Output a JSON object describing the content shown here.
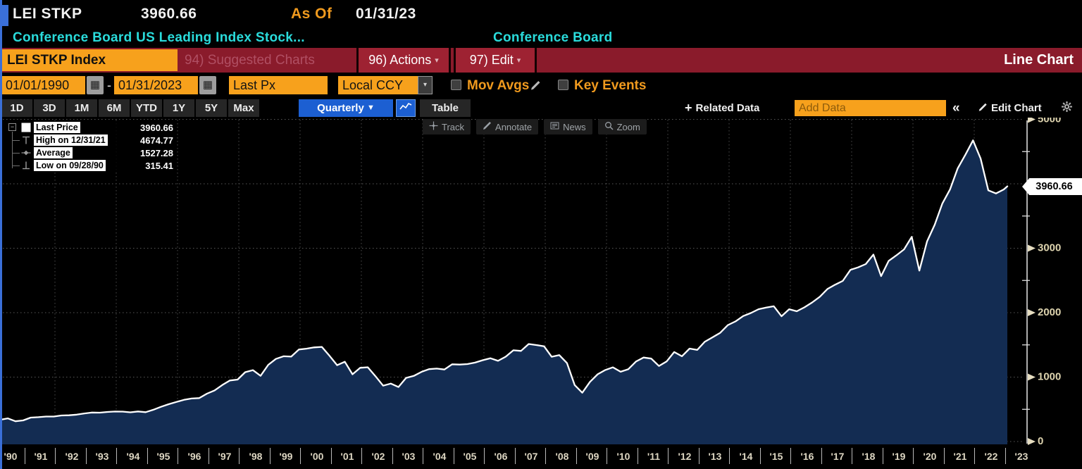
{
  "header": {
    "ticker": "LEI STKP",
    "last_value": "3960.66",
    "as_of_label": "As Of",
    "as_of_date": "01/31/23",
    "description": "Conference Board US Leading Index Stock...",
    "source": "Conference Board"
  },
  "ribbon": {
    "ticker_box": "LEI STKP Index",
    "suggested_charts": "94) Suggested Charts",
    "actions": "96) Actions",
    "edit": "97) Edit",
    "view_title": "Line Chart"
  },
  "controls": {
    "date_from": "01/01/1990",
    "date_range_dash": "-",
    "date_to": "01/31/2023",
    "price_field": "Last Px",
    "currency": "Local CCY",
    "mov_avgs_label": "Mov Avgs",
    "key_events_label": "Key Events"
  },
  "toolbar": {
    "periods": [
      "1D",
      "3D",
      "1M",
      "6M",
      "YTD",
      "1Y",
      "5Y",
      "Max"
    ],
    "frequency": "Quarterly",
    "table_label": "Table",
    "related_data_label": "Related Data",
    "related_plus": "+",
    "add_data_placeholder": "Add Data",
    "collapse_label": "«",
    "edit_chart_label": "Edit Chart"
  },
  "chart_tools": [
    {
      "icon": "track-icon",
      "label": "Track"
    },
    {
      "icon": "annotate-icon",
      "label": "Annotate"
    },
    {
      "icon": "news-icon",
      "label": "News"
    },
    {
      "icon": "zoom-icon",
      "label": "Zoom"
    }
  ],
  "legend": {
    "rows": [
      {
        "icon": "last-price-swatch",
        "label": "Last Price",
        "value": "3960.66"
      },
      {
        "icon": "high-marker-icon",
        "label": "High on 12/31/21",
        "value": "4674.77"
      },
      {
        "icon": "average-marker-icon",
        "label": "Average",
        "value": "1527.28"
      },
      {
        "icon": "low-marker-icon",
        "label": "Low on 09/28/90",
        "value": "315.41"
      }
    ]
  },
  "last_price_tag": "3960.66",
  "colors": {
    "accent_orange": "#f7a11c",
    "amber_text": "#f09a1e",
    "cyan_text": "#2adbdb",
    "ribbon_red": "#8a1b2b",
    "button_blue": "#1c5fd2",
    "line_white": "#ffffff",
    "fill_navy": "#132c52",
    "grid_gray": "#555555",
    "axis_label": "#ddd3ae"
  },
  "chart_data": {
    "type": "area",
    "title": "LEI STKP Index - Conference Board US Leading Index Stock Prices",
    "frequency": "Quarterly",
    "x_unit": "decimal_year",
    "x_start": 1990.21,
    "x_step": 0.25,
    "x_last": 2023.08,
    "values": [
      338,
      360,
      315,
      328,
      372,
      378,
      388,
      388,
      404,
      408,
      418,
      436,
      450,
      448,
      459,
      466,
      464,
      454,
      467,
      456,
      493,
      539,
      579,
      614,
      647,
      668,
      674,
      743,
      793,
      876,
      947,
      962,
      1076,
      1108,
      1020,
      1190,
      1282,
      1323,
      1318,
      1428,
      1442,
      1461,
      1469,
      1330,
      1185,
      1238,
      1044,
      1144,
      1153,
      1014,
      867,
      899,
      846,
      988,
      1019,
      1081,
      1123,
      1132,
      1118,
      1199,
      1194,
      1202,
      1225,
      1262,
      1293,
      1253,
      1317,
      1416,
      1407,
      1514,
      1497,
      1479,
      1316,
      1341,
      1217,
      877,
      757,
      926,
      1044,
      1110,
      1152,
      1083,
      1122,
      1241,
      1304,
      1287,
      1173,
      1243,
      1389,
      1323,
      1443,
      1422,
      1550,
      1618,
      1687,
      1808,
      1864,
      1947,
      1994,
      2054,
      2080,
      2099,
      1944,
      2054,
      2022,
      2083,
      2158,
      2247,
      2367,
      2434,
      2493,
      2664,
      2703,
      2754,
      2902,
      2567,
      2804,
      2890,
      2982,
      3177,
      2652,
      3105,
      3365,
      3695,
      3911,
      4238,
      4450,
      4674.77,
      4391,
      3898,
      3850,
      3912,
      3960.66
    ],
    "stats": {
      "last": 3960.66,
      "high": 4674.77,
      "high_date": "12/31/21",
      "average": 1527.28,
      "low": 315.41,
      "low_date": "09/28/90"
    },
    "ylim": [
      0,
      5000
    ],
    "y_ticks": [
      0,
      1000,
      2000,
      3000,
      4000,
      5000
    ],
    "y_minor_step": 500,
    "x_tick_labels": [
      "'90",
      "'91",
      "'92",
      "'93",
      "'94",
      "'95",
      "'96",
      "'97",
      "'98",
      "'99",
      "'00",
      "'01",
      "'02",
      "'03",
      "'04",
      "'05",
      "'06",
      "'07",
      "'08",
      "'09",
      "'10",
      "'11",
      "'12",
      "'13",
      "'14",
      "'15",
      "'16",
      "'17",
      "'18",
      "'19",
      "'20",
      "'21",
      "'22",
      "'23"
    ],
    "grid_years": [
      1992,
      1994,
      1996,
      1998,
      2000,
      2002,
      2004,
      2006,
      2008,
      2010,
      2012,
      2014,
      2016,
      2018,
      2020,
      2022
    ],
    "grid_style": "dotted",
    "legend_position": "top-left",
    "line_color": "#ffffff",
    "fill_color": "#132c52"
  }
}
